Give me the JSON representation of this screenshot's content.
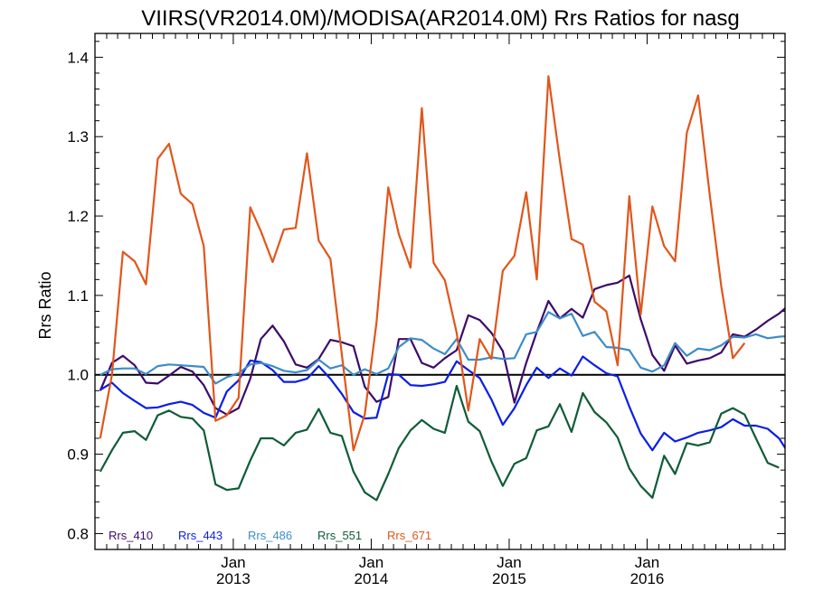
{
  "chart_data": {
    "type": "line",
    "title": "VIIRS(VR2014.0M)/MODISA(AR2014.0M)  Rrs Ratios for nasg",
    "xlabel": "",
    "ylabel": "Rrs Ratio",
    "ylim": [
      0.78,
      1.43
    ],
    "yticks": [
      "0.8",
      "0.9",
      "1.0",
      "1.1",
      "1.2",
      "1.3",
      "1.4"
    ],
    "xlim": [
      "2012-01-01",
      "2016-12-31"
    ],
    "xticks": [
      {
        "month": "Jan",
        "year": "2013",
        "date": "2013-01-01"
      },
      {
        "month": "Jan",
        "year": "2014",
        "date": "2014-01-01"
      },
      {
        "month": "Jan",
        "year": "2015",
        "date": "2015-01-01"
      },
      {
        "month": "Jan",
        "year": "2016",
        "date": "2016-01-01"
      }
    ],
    "reference_line": 1.0,
    "legend_position": "bottom-left",
    "x_start": "2012-01-15",
    "x_step": "1 month",
    "series": [
      {
        "name": "Rrs_410",
        "color": "#3d0b6b",
        "values": [
          0.98,
          1.015,
          1.024,
          1.012,
          0.99,
          0.989,
          0.999,
          1.01,
          1.004,
          0.987,
          0.958,
          0.95,
          0.958,
          0.995,
          1.045,
          1.062,
          1.042,
          1.013,
          1.009,
          1.02,
          1.044,
          1.041,
          1.036,
          0.985,
          0.966,
          0.972,
          1.045,
          1.045,
          1.015,
          1.009,
          1.021,
          1.031,
          1.075,
          1.069,
          1.053,
          1.03,
          0.965,
          1.015,
          1.054,
          1.093,
          1.071,
          1.083,
          1.072,
          1.108,
          1.113,
          1.116,
          1.125,
          1.07,
          1.025,
          1.005,
          1.037,
          1.014,
          1.018,
          1.021,
          1.028,
          1.051,
          1.048,
          1.057,
          1.068,
          1.077,
          1.09
        ]
      },
      {
        "name": "Rrs_443",
        "color": "#0a1ee6",
        "values": [
          0.981,
          0.99,
          0.977,
          0.967,
          0.958,
          0.959,
          0.963,
          0.966,
          0.962,
          0.952,
          0.946,
          0.979,
          0.993,
          1.018,
          1.016,
          1.006,
          0.991,
          0.991,
          0.995,
          1.011,
          0.995,
          0.976,
          0.953,
          0.945,
          0.946,
          1.001,
          1.0,
          0.987,
          0.986,
          0.988,
          0.991,
          1.017,
          1.006,
          0.996,
          0.969,
          0.937,
          0.958,
          0.987,
          1.009,
          0.996,
          1.008,
          0.999,
          1.023,
          1.012,
          1.002,
          0.998,
          0.96,
          0.926,
          0.905,
          0.927,
          0.916,
          0.921,
          0.927,
          0.93,
          0.934,
          0.944,
          0.936,
          0.936,
          0.932,
          0.92,
          0.897
        ]
      },
      {
        "name": "Rrs_486",
        "color": "#3d8cc8",
        "values": [
          1.0,
          1.007,
          1.008,
          1.008,
          1.001,
          1.011,
          1.013,
          1.012,
          1.011,
          1.01,
          0.989,
          0.997,
          1.002,
          1.013,
          1.015,
          1.011,
          1.005,
          1.003,
          1.006,
          1.019,
          1.008,
          1.012,
          1.0,
          1.007,
          1.001,
          1.008,
          1.035,
          1.046,
          1.044,
          1.033,
          1.026,
          1.045,
          1.019,
          1.019,
          1.022,
          1.02,
          1.021,
          1.051,
          1.054,
          1.079,
          1.071,
          1.077,
          1.049,
          1.054,
          1.035,
          1.034,
          1.031,
          1.009,
          1.004,
          1.012,
          1.04,
          1.024,
          1.033,
          1.031,
          1.037,
          1.048,
          1.047,
          1.051,
          1.046,
          1.048,
          1.049
        ]
      },
      {
        "name": "Rrs_551",
        "color": "#0f5c37",
        "values": [
          0.878,
          0.905,
          0.927,
          0.929,
          0.918,
          0.949,
          0.955,
          0.947,
          0.945,
          0.93,
          0.862,
          0.855,
          0.857,
          0.892,
          0.92,
          0.92,
          0.911,
          0.927,
          0.931,
          0.957,
          0.927,
          0.923,
          0.878,
          0.852,
          0.842,
          0.875,
          0.908,
          0.93,
          0.943,
          0.932,
          0.927,
          0.986,
          0.941,
          0.929,
          0.891,
          0.86,
          0.888,
          0.895,
          0.93,
          0.935,
          0.963,
          0.928,
          0.977,
          0.953,
          0.94,
          0.921,
          0.882,
          0.86,
          0.845,
          0.898,
          0.875,
          0.914,
          0.911,
          0.915,
          0.951,
          0.958,
          0.95,
          0.92,
          0.889,
          0.883
        ]
      },
      {
        "name": "Rrs_671",
        "color": "#e0561b",
        "values": [
          0.92,
          1.0,
          1.155,
          1.143,
          1.114,
          1.272,
          1.291,
          1.228,
          1.215,
          1.162,
          0.942,
          0.949,
          0.971,
          1.211,
          1.181,
          1.142,
          1.183,
          1.185,
          1.279,
          1.169,
          1.146,
          1.026,
          0.905,
          0.95,
          1.066,
          1.236,
          1.177,
          1.135,
          1.336,
          1.141,
          1.119,
          1.053,
          0.955,
          1.045,
          1.02,
          1.131,
          1.15,
          1.23,
          1.12,
          1.376,
          1.27,
          1.171,
          1.164,
          1.092,
          1.08,
          1.012,
          1.225,
          1.076,
          1.212,
          1.162,
          1.143,
          1.305,
          1.352,
          1.226,
          1.112,
          1.021,
          1.04
        ]
      }
    ]
  }
}
